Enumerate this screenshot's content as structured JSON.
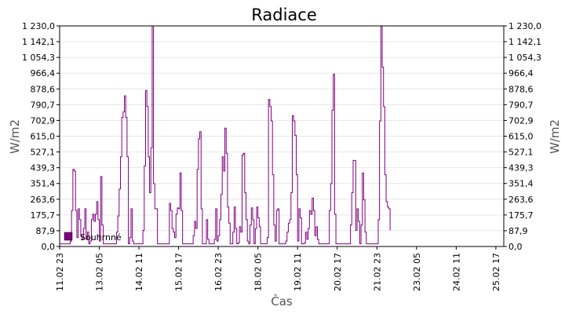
{
  "chart_data": {
    "type": "line",
    "title": "Radiace",
    "xlabel": "Čas",
    "ylabel": "W/m2",
    "ylabel_right": "W/m2",
    "ylim": [
      0,
      1230
    ],
    "yticks": [
      "0,0",
      "87,9",
      "175,7",
      "263,6",
      "351,4",
      "439,3",
      "527,1",
      "615,0",
      "702,9",
      "790,7",
      "878,6",
      "966,4",
      "1 054,3",
      "1 142,1",
      "1 230,0"
    ],
    "ytick_values": [
      0,
      87.9,
      175.7,
      263.6,
      351.4,
      439.3,
      527.1,
      615.0,
      702.9,
      790.7,
      878.6,
      966.4,
      1054.3,
      1142.1,
      1230.0
    ],
    "xlim": [
      0,
      336
    ],
    "xticks": [
      "11.02 23",
      "13.02 05",
      "14.02 11",
      "15.02 17",
      "16.02 23",
      "18.02 05",
      "19.02 11",
      "20.02 17",
      "21.02 23",
      "23.02 05",
      "24.02 11",
      "25.02 17"
    ],
    "xtick_values": [
      0,
      30,
      60,
      90,
      120,
      150,
      180,
      210,
      240,
      270,
      300,
      330
    ],
    "grid": true,
    "legend_position": "bottom-left",
    "colors": {
      "series": "#800080",
      "grid": "#e6e6e6",
      "axis": "#000000"
    },
    "series": [
      {
        "name": "Souhrnné",
        "points": [
          [
            0,
            15
          ],
          [
            6,
            15
          ],
          [
            8,
            30
          ],
          [
            9,
            200
          ],
          [
            10,
            430
          ],
          [
            11,
            420
          ],
          [
            12,
            200
          ],
          [
            13,
            50
          ],
          [
            14,
            210
          ],
          [
            15,
            150
          ],
          [
            16,
            60
          ],
          [
            17,
            40
          ],
          [
            18,
            100
          ],
          [
            19,
            210
          ],
          [
            20,
            40
          ],
          [
            21,
            80
          ],
          [
            22,
            15
          ],
          [
            23,
            30
          ],
          [
            24,
            150
          ],
          [
            25,
            180
          ],
          [
            26,
            140
          ],
          [
            27,
            180
          ],
          [
            28,
            250
          ],
          [
            29,
            150
          ],
          [
            30,
            30
          ],
          [
            31,
            390
          ],
          [
            32,
            120
          ],
          [
            33,
            15
          ],
          [
            42,
            15
          ],
          [
            43,
            80
          ],
          [
            44,
            170
          ],
          [
            45,
            320
          ],
          [
            46,
            500
          ],
          [
            47,
            720
          ],
          [
            48,
            750
          ],
          [
            49,
            840
          ],
          [
            50,
            720
          ],
          [
            51,
            500
          ],
          [
            52,
            15
          ],
          [
            53,
            50
          ],
          [
            54,
            210
          ],
          [
            55,
            30
          ],
          [
            56,
            15
          ],
          [
            62,
            15
          ],
          [
            63,
            90
          ],
          [
            64,
            450
          ],
          [
            65,
            870
          ],
          [
            66,
            780
          ],
          [
            67,
            500
          ],
          [
            68,
            300
          ],
          [
            69,
            550
          ],
          [
            70,
            1230
          ],
          [
            71,
            350
          ],
          [
            72,
            210
          ],
          [
            73,
            210
          ],
          [
            74,
            15
          ],
          [
            82,
            15
          ],
          [
            83,
            240
          ],
          [
            84,
            200
          ],
          [
            85,
            100
          ],
          [
            86,
            80
          ],
          [
            87,
            50
          ],
          [
            88,
            180
          ],
          [
            89,
            215
          ],
          [
            90,
            210
          ],
          [
            91,
            410
          ],
          [
            92,
            200
          ],
          [
            93,
            15
          ],
          [
            100,
            15
          ],
          [
            101,
            60
          ],
          [
            102,
            140
          ],
          [
            103,
            100
          ],
          [
            104,
            430
          ],
          [
            105,
            600
          ],
          [
            106,
            640
          ],
          [
            107,
            210
          ],
          [
            108,
            15
          ],
          [
            110,
            15
          ],
          [
            111,
            150
          ],
          [
            112,
            40
          ],
          [
            113,
            15
          ],
          [
            116,
            15
          ],
          [
            117,
            40
          ],
          [
            118,
            210
          ],
          [
            119,
            30
          ],
          [
            120,
            60
          ],
          [
            121,
            150
          ],
          [
            122,
            290
          ],
          [
            123,
            500
          ],
          [
            124,
            420
          ],
          [
            125,
            660
          ],
          [
            126,
            520
          ],
          [
            127,
            220
          ],
          [
            128,
            130
          ],
          [
            129,
            15
          ],
          [
            130,
            15
          ],
          [
            131,
            80
          ],
          [
            132,
            220
          ],
          [
            133,
            100
          ],
          [
            134,
            15
          ],
          [
            135,
            20
          ],
          [
            136,
            110
          ],
          [
            137,
            80
          ],
          [
            138,
            510
          ],
          [
            139,
            520
          ],
          [
            140,
            300
          ],
          [
            141,
            150
          ],
          [
            142,
            30
          ],
          [
            143,
            15
          ],
          [
            144,
            120
          ],
          [
            145,
            215
          ],
          [
            146,
            150
          ],
          [
            147,
            15
          ],
          [
            148,
            100
          ],
          [
            149,
            220
          ],
          [
            150,
            160
          ],
          [
            151,
            110
          ],
          [
            152,
            15
          ],
          [
            156,
            15
          ],
          [
            157,
            50
          ],
          [
            158,
            820
          ],
          [
            159,
            780
          ],
          [
            160,
            700
          ],
          [
            161,
            400
          ],
          [
            162,
            120
          ],
          [
            163,
            30
          ],
          [
            164,
            200
          ],
          [
            165,
            210
          ],
          [
            166,
            15
          ],
          [
            170,
            15
          ],
          [
            171,
            30
          ],
          [
            172,
            80
          ],
          [
            173,
            130
          ],
          [
            174,
            150
          ],
          [
            175,
            300
          ],
          [
            176,
            730
          ],
          [
            177,
            700
          ],
          [
            178,
            620
          ],
          [
            179,
            400
          ],
          [
            180,
            30
          ],
          [
            181,
            210
          ],
          [
            182,
            160
          ],
          [
            183,
            15
          ],
          [
            185,
            20
          ],
          [
            186,
            80
          ],
          [
            187,
            40
          ],
          [
            188,
            100
          ],
          [
            189,
            200
          ],
          [
            190,
            180
          ],
          [
            191,
            270
          ],
          [
            192,
            200
          ],
          [
            193,
            60
          ],
          [
            194,
            110
          ],
          [
            195,
            40
          ],
          [
            196,
            15
          ],
          [
            203,
            15
          ],
          [
            204,
            200
          ],
          [
            205,
            350
          ],
          [
            206,
            760
          ],
          [
            207,
            960
          ],
          [
            208,
            180
          ],
          [
            209,
            15
          ],
          [
            219,
            15
          ],
          [
            220,
            120
          ],
          [
            221,
            300
          ],
          [
            222,
            480
          ],
          [
            223,
            480
          ],
          [
            224,
            90
          ],
          [
            225,
            210
          ],
          [
            226,
            140
          ],
          [
            227,
            15
          ],
          [
            228,
            120
          ],
          [
            229,
            410
          ],
          [
            230,
            260
          ],
          [
            231,
            80
          ],
          [
            232,
            15
          ],
          [
            240,
            15
          ],
          [
            241,
            150
          ],
          [
            242,
            700
          ],
          [
            243,
            1230
          ],
          [
            244,
            1000
          ],
          [
            245,
            780
          ],
          [
            246,
            400
          ],
          [
            247,
            250
          ],
          [
            248,
            220
          ],
          [
            249,
            210
          ],
          [
            250,
            90
          ]
        ]
      }
    ]
  }
}
